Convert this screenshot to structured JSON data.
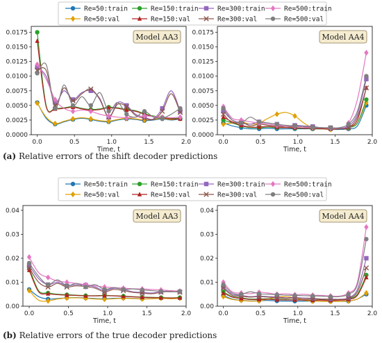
{
  "captions": [
    {
      "tag": "(a)",
      "text": "Relative errors of the shift decoder predictions"
    },
    {
      "tag": "(b)",
      "text": "Relative errors of the true decoder predictions"
    }
  ],
  "legend": {
    "entries": [
      {
        "label": "Re=50:train",
        "color": "#1f77b4",
        "marker": "circle"
      },
      {
        "label": "Re=50:val",
        "color": "#e0a000",
        "marker": "diamond"
      },
      {
        "label": "Re=150:train",
        "color": "#2ca02c",
        "marker": "circle"
      },
      {
        "label": "Re=150:val",
        "color": "#b22222",
        "marker": "triangle"
      },
      {
        "label": "Re=300:train",
        "color": "#9467bd",
        "marker": "square"
      },
      {
        "label": "Re=300:val",
        "color": "#8c564b",
        "marker": "x"
      },
      {
        "label": "Re=500:train",
        "color": "#e377c2",
        "marker": "diamond"
      },
      {
        "label": "Re=500:val",
        "color": "#7f7f7f",
        "marker": "circle"
      }
    ]
  },
  "chart_data": [
    {
      "type": "line",
      "panel": "a-left",
      "title": "Model AA3",
      "xlabel": "Time, t",
      "xlim": [
        -0.08,
        2.0
      ],
      "ylim": [
        0,
        0.0185
      ],
      "xticks": [
        "0.0",
        "0.5",
        "1.0",
        "1.5",
        "2.0"
      ],
      "yticks": [
        "0.0000",
        "0.0025",
        "0.0050",
        "0.0075",
        "0.0100",
        "0.0125",
        "0.0150",
        "0.0175"
      ],
      "x": [
        0.0,
        0.12,
        0.24,
        0.36,
        0.48,
        0.6,
        0.72,
        0.84,
        0.96,
        1.08,
        1.2,
        1.32,
        1.44,
        1.56,
        1.68,
        1.8,
        1.92
      ],
      "series": [
        {
          "name": "Re=50:train",
          "values": [
            0.0055,
            0.0028,
            0.0018,
            0.0022,
            0.0026,
            0.0028,
            0.0026,
            0.0023,
            0.0022,
            0.0025,
            0.0027,
            0.0026,
            0.0024,
            0.0025,
            0.0027,
            0.0025,
            0.0027
          ]
        },
        {
          "name": "Re=50:val",
          "values": [
            0.0054,
            0.003,
            0.0019,
            0.0023,
            0.0027,
            0.0029,
            0.0027,
            0.0024,
            0.0023,
            0.0026,
            0.0028,
            0.0027,
            0.0025,
            0.0026,
            0.0028,
            0.0026,
            0.0028
          ]
        },
        {
          "name": "Re=150:train",
          "values": [
            0.0175,
            0.005,
            0.0045,
            0.0046,
            0.0048,
            0.0045,
            0.0043,
            0.0044,
            0.0047,
            0.0046,
            0.0043,
            0.0041,
            0.0036,
            0.0032,
            0.003,
            0.0028,
            0.0028
          ]
        },
        {
          "name": "Re=150:val",
          "values": [
            0.016,
            0.0048,
            0.0044,
            0.0045,
            0.0047,
            0.0044,
            0.0042,
            0.0043,
            0.0046,
            0.0045,
            0.0042,
            0.004,
            0.0035,
            0.0031,
            0.0029,
            0.0027,
            0.0027
          ]
        },
        {
          "name": "Re=300:train",
          "values": [
            0.0115,
            0.01,
            0.0055,
            0.0075,
            0.006,
            0.0072,
            0.0075,
            0.0062,
            0.003,
            0.0055,
            0.005,
            0.0035,
            0.003,
            0.0027,
            0.0045,
            0.0075,
            0.004
          ]
        },
        {
          "name": "Re=300:val",
          "values": [
            0.011,
            0.011,
            0.005,
            0.008,
            0.0058,
            0.007,
            0.0078,
            0.006,
            0.003,
            0.0052,
            0.0048,
            0.0033,
            0.0028,
            0.0026,
            0.004,
            0.007,
            0.0038
          ]
        },
        {
          "name": "Re=500:train",
          "values": [
            0.012,
            0.0095,
            0.006,
            0.0045,
            0.004,
            0.0042,
            0.004,
            0.0035,
            0.0032,
            0.003,
            0.0029,
            0.003,
            0.0032,
            0.0031,
            0.003,
            0.0029,
            0.003
          ]
        },
        {
          "name": "Re=500:val",
          "values": [
            0.0105,
            0.012,
            0.0045,
            0.0085,
            0.005,
            0.0065,
            0.005,
            0.0072,
            0.004,
            0.0055,
            0.0035,
            0.003,
            0.004,
            0.003,
            0.0028,
            0.0035,
            0.0045
          ]
        }
      ]
    },
    {
      "type": "line",
      "panel": "a-right",
      "title": "Model AA4",
      "xlabel": "Time, t",
      "xlim": [
        -0.08,
        2.0
      ],
      "ylim": [
        0,
        0.0185
      ],
      "xticks": [
        "0.0",
        "0.5",
        "1.0",
        "1.5",
        "2.0"
      ],
      "yticks": [
        "0.0000",
        "0.0025",
        "0.0050",
        "0.0075",
        "0.0100",
        "0.0125",
        "0.0150",
        "0.0175"
      ],
      "x": [
        0.0,
        0.12,
        0.24,
        0.36,
        0.48,
        0.6,
        0.72,
        0.84,
        0.96,
        1.08,
        1.2,
        1.32,
        1.44,
        1.56,
        1.68,
        1.8,
        1.92
      ],
      "series": [
        {
          "name": "Re=50:train",
          "values": [
            0.002,
            0.0015,
            0.0012,
            0.001,
            0.001,
            0.0011,
            0.001,
            0.001,
            0.001,
            0.001,
            0.001,
            0.001,
            0.0009,
            0.0009,
            0.001,
            0.0015,
            0.005
          ]
        },
        {
          "name": "Re=50:val",
          "values": [
            0.0018,
            0.002,
            0.0022,
            0.0018,
            0.002,
            0.0028,
            0.0035,
            0.0038,
            0.0032,
            0.002,
            0.0012,
            0.001,
            0.0009,
            0.001,
            0.0012,
            0.002,
            0.0055
          ]
        },
        {
          "name": "Re=150:train",
          "values": [
            0.0025,
            0.002,
            0.0015,
            0.0012,
            0.0012,
            0.0013,
            0.0012,
            0.0012,
            0.0011,
            0.0011,
            0.001,
            0.001,
            0.001,
            0.001,
            0.0012,
            0.002,
            0.006
          ]
        },
        {
          "name": "Re=150:val",
          "values": [
            0.003,
            0.0022,
            0.0016,
            0.0013,
            0.0013,
            0.0014,
            0.0013,
            0.0012,
            0.0012,
            0.0011,
            0.0011,
            0.001,
            0.001,
            0.001,
            0.0013,
            0.0025,
            0.008
          ]
        },
        {
          "name": "Re=300:train",
          "values": [
            0.004,
            0.0025,
            0.002,
            0.0018,
            0.0022,
            0.002,
            0.0018,
            0.0015,
            0.0016,
            0.0015,
            0.0014,
            0.0012,
            0.0012,
            0.0011,
            0.0015,
            0.0035,
            0.0095
          ]
        },
        {
          "name": "Re=300:val",
          "values": [
            0.0035,
            0.002,
            0.0022,
            0.0015,
            0.0018,
            0.0016,
            0.0015,
            0.0013,
            0.0014,
            0.0013,
            0.0012,
            0.0011,
            0.0011,
            0.001,
            0.0012,
            0.003,
            0.008
          ]
        },
        {
          "name": "Re=500:train",
          "values": [
            0.0048,
            0.0028,
            0.0025,
            0.0022,
            0.002,
            0.0018,
            0.0016,
            0.0015,
            0.0014,
            0.0013,
            0.0012,
            0.0012,
            0.0011,
            0.0012,
            0.002,
            0.006,
            0.014
          ]
        },
        {
          "name": "Re=500:val",
          "values": [
            0.0045,
            0.0025,
            0.002,
            0.003,
            0.0022,
            0.002,
            0.0018,
            0.0016,
            0.0015,
            0.0014,
            0.0013,
            0.0012,
            0.0012,
            0.0012,
            0.0018,
            0.004,
            0.01
          ]
        }
      ]
    },
    {
      "type": "line",
      "panel": "b-left",
      "title": "Model AA3",
      "xlabel": "Time, t",
      "xlim": [
        -0.08,
        2.0
      ],
      "ylim": [
        0,
        0.042
      ],
      "xticks": [
        "0.0",
        "0.5",
        "1.0",
        "1.5",
        "2.0"
      ],
      "yticks": [
        "0.00",
        "0.01",
        "0.02",
        "0.03",
        "0.04"
      ],
      "x": [
        0.0,
        0.12,
        0.24,
        0.36,
        0.48,
        0.6,
        0.72,
        0.84,
        0.96,
        1.08,
        1.2,
        1.32,
        1.44,
        1.56,
        1.68,
        1.8,
        1.92
      ],
      "series": [
        {
          "name": "Re=50:train",
          "values": [
            0.007,
            0.004,
            0.003,
            0.0032,
            0.0035,
            0.0036,
            0.0034,
            0.0032,
            0.0031,
            0.0033,
            0.0034,
            0.0033,
            0.0031,
            0.0032,
            0.0034,
            0.0032,
            0.0034
          ]
        },
        {
          "name": "Re=50:val",
          "values": [
            0.0065,
            0.0025,
            0.0022,
            0.003,
            0.0034,
            0.0035,
            0.0033,
            0.003,
            0.0029,
            0.0031,
            0.0033,
            0.0032,
            0.003,
            0.0031,
            0.0033,
            0.0031,
            0.0033
          ]
        },
        {
          "name": "Re=150:train",
          "values": [
            0.016,
            0.0065,
            0.0055,
            0.005,
            0.0048,
            0.0046,
            0.0044,
            0.0044,
            0.0045,
            0.0044,
            0.0042,
            0.004,
            0.0038,
            0.0037,
            0.0036,
            0.0035,
            0.0036
          ]
        },
        {
          "name": "Re=150:val",
          "values": [
            0.015,
            0.006,
            0.0052,
            0.0048,
            0.0046,
            0.0045,
            0.0043,
            0.0043,
            0.0044,
            0.0043,
            0.0041,
            0.0039,
            0.0037,
            0.0036,
            0.0035,
            0.0034,
            0.0035
          ]
        },
        {
          "name": "Re=300:train",
          "values": [
            0.017,
            0.0115,
            0.009,
            0.01,
            0.0085,
            0.009,
            0.0088,
            0.008,
            0.0065,
            0.0075,
            0.007,
            0.006,
            0.0058,
            0.0055,
            0.006,
            0.0065,
            0.006
          ]
        },
        {
          "name": "Re=300:val",
          "values": [
            0.016,
            0.01,
            0.008,
            0.0095,
            0.008,
            0.0085,
            0.0082,
            0.0075,
            0.006,
            0.007,
            0.0065,
            0.0058,
            0.0055,
            0.0052,
            0.0058,
            0.0062,
            0.0058
          ]
        },
        {
          "name": "Re=500:train",
          "values": [
            0.0205,
            0.014,
            0.012,
            0.0105,
            0.01,
            0.0095,
            0.009,
            0.0085,
            0.008,
            0.0078,
            0.0075,
            0.0073,
            0.0072,
            0.007,
            0.0068,
            0.0065,
            0.0063
          ]
        },
        {
          "name": "Re=500:val",
          "values": [
            0.018,
            0.0125,
            0.009,
            0.011,
            0.0085,
            0.0095,
            0.008,
            0.009,
            0.007,
            0.0078,
            0.007,
            0.0072,
            0.0068,
            0.0065,
            0.0062,
            0.006,
            0.0062
          ]
        }
      ]
    },
    {
      "type": "line",
      "panel": "b-right",
      "title": "Model AA4",
      "xlabel": "Time, t",
      "xlim": [
        -0.08,
        2.0
      ],
      "ylim": [
        0,
        0.042
      ],
      "xticks": [
        "0.0",
        "0.5",
        "1.0",
        "1.5",
        "2.0"
      ],
      "yticks": [
        "0.00",
        "0.01",
        "0.02",
        "0.03",
        "0.04"
      ],
      "x": [
        0.0,
        0.12,
        0.24,
        0.36,
        0.48,
        0.6,
        0.72,
        0.84,
        0.96,
        1.08,
        1.2,
        1.32,
        1.44,
        1.56,
        1.68,
        1.8,
        1.92
      ],
      "series": [
        {
          "name": "Re=50:train",
          "values": [
            0.0045,
            0.003,
            0.0025,
            0.0022,
            0.0023,
            0.0024,
            0.0022,
            0.0021,
            0.0021,
            0.0021,
            0.0021,
            0.002,
            0.002,
            0.002,
            0.0021,
            0.003,
            0.005
          ]
        },
        {
          "name": "Re=50:val",
          "values": [
            0.004,
            0.0028,
            0.0024,
            0.0021,
            0.0022,
            0.003,
            0.0038,
            0.004,
            0.0035,
            0.0025,
            0.0021,
            0.002,
            0.002,
            0.002,
            0.0022,
            0.003,
            0.0055
          ]
        },
        {
          "name": "Re=150:train",
          "values": [
            0.006,
            0.004,
            0.0035,
            0.003,
            0.003,
            0.0031,
            0.0029,
            0.0028,
            0.0027,
            0.0027,
            0.0026,
            0.0026,
            0.0025,
            0.0026,
            0.003,
            0.005,
            0.013
          ]
        },
        {
          "name": "Re=150:val",
          "values": [
            0.0055,
            0.0038,
            0.0032,
            0.0028,
            0.0028,
            0.0029,
            0.0027,
            0.0026,
            0.0026,
            0.0026,
            0.0025,
            0.0025,
            0.0024,
            0.0025,
            0.0028,
            0.0045,
            0.012
          ]
        },
        {
          "name": "Re=300:train",
          "values": [
            0.008,
            0.005,
            0.0045,
            0.004,
            0.0042,
            0.004,
            0.0038,
            0.0035,
            0.0036,
            0.0034,
            0.0033,
            0.003,
            0.003,
            0.0029,
            0.0035,
            0.007,
            0.02
          ]
        },
        {
          "name": "Re=300:val",
          "values": [
            0.0075,
            0.0045,
            0.0042,
            0.0038,
            0.004,
            0.0038,
            0.0035,
            0.0033,
            0.0034,
            0.0032,
            0.0031,
            0.0029,
            0.0029,
            0.0028,
            0.0032,
            0.006,
            0.016
          ]
        },
        {
          "name": "Re=500:train",
          "values": [
            0.01,
            0.006,
            0.0055,
            0.0052,
            0.0058,
            0.0055,
            0.005,
            0.0052,
            0.0048,
            0.005,
            0.0046,
            0.0045,
            0.0043,
            0.0042,
            0.0055,
            0.01,
            0.033
          ]
        },
        {
          "name": "Re=500:val",
          "values": [
            0.009,
            0.0055,
            0.005,
            0.006,
            0.0052,
            0.005,
            0.0048,
            0.0046,
            0.0045,
            0.0044,
            0.0043,
            0.0042,
            0.004,
            0.004,
            0.005,
            0.009,
            0.028
          ]
        }
      ]
    }
  ]
}
